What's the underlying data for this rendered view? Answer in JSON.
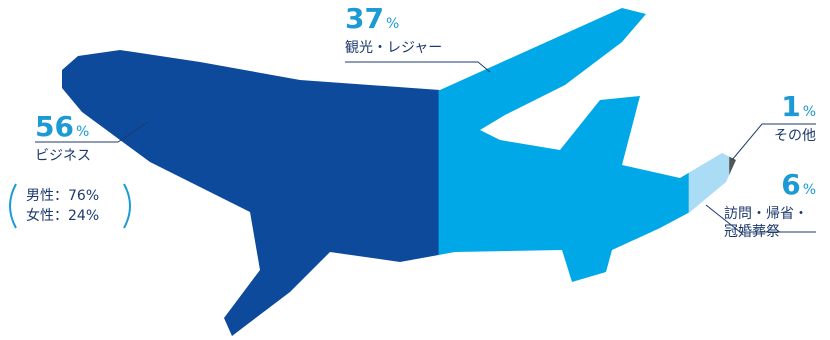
{
  "chart_data": {
    "type": "pictorial-bar",
    "unit": "%",
    "categories": [
      "ビジネス",
      "観光・レジャー",
      "訪問・帰省・冠婚葬祭",
      "その他"
    ],
    "values": [
      56,
      37,
      6,
      1
    ],
    "colors": [
      "#0e4a9b",
      "#00a8e8",
      "#aadcf5",
      "#555555"
    ],
    "breakdown": {
      "values": [
        76,
        24
      ],
      "value_labels": [
        "男性：76%",
        "女性：24%"
      ]
    }
  }
}
